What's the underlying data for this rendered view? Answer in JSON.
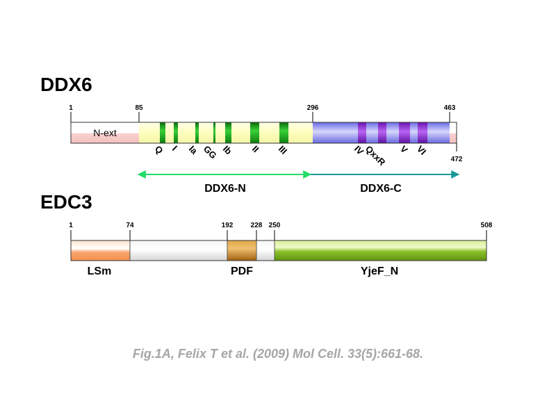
{
  "colors": {
    "pale_yellow": "#ffffc0",
    "pale_pink": "#f9d0d0",
    "motif_green": "#1aa41a",
    "blue_region": "#a8a8f4",
    "motif_purple": "#8c2ed8",
    "lsm_orange": "#f9a36b",
    "grey_region": "#e4e4e4",
    "pdf_gold": "#c08020",
    "yjef_green": "#8cc02a",
    "arrow_n": "#22dd66",
    "arrow_c": "#1a9898"
  },
  "ddx6": {
    "title": "DDX6",
    "length": 472,
    "ticks": [
      "1",
      "85",
      "296",
      "463"
    ],
    "end_label": "472",
    "next_label": "N-ext",
    "motifs": [
      "Q",
      "I",
      "Ia",
      "GG",
      "Ib",
      "II",
      "III",
      "IV",
      "QxxR",
      "V",
      "VI"
    ],
    "arrow_n_label": "DDX6-N",
    "arrow_c_label": "DDX6-C"
  },
  "edc3": {
    "title": "EDC3",
    "length": 508,
    "ticks": [
      "1",
      "74",
      "192",
      "228",
      "250",
      "508"
    ],
    "domains": [
      "LSm",
      "PDF",
      "YjeF_N"
    ]
  },
  "caption": "Fig.1A, Felix T et al. (2009) Mol Cell. 33(5):661-68."
}
